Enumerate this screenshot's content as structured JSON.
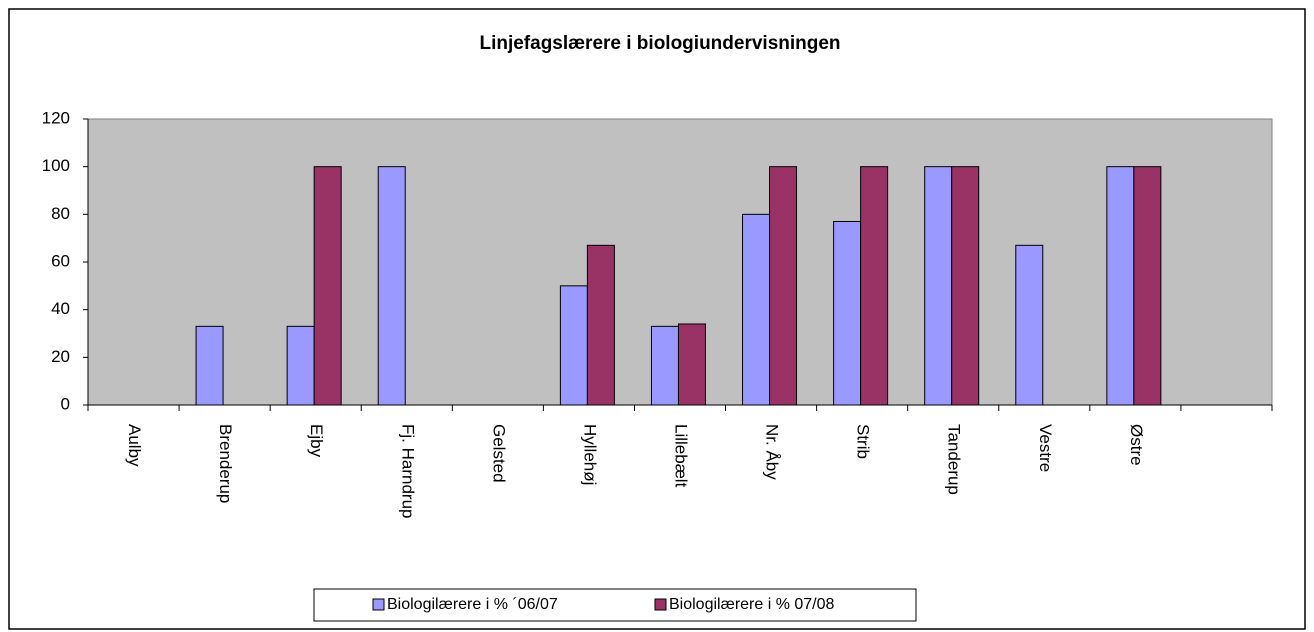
{
  "chart_data": {
    "type": "bar",
    "title": "Linjefagslærere i biologiundervisningen",
    "categories": [
      "Aulby",
      "Brenderup",
      "Ejby",
      "Fj. Harndrup",
      "Gelsted",
      "Hyllehøj",
      "Lillebælt",
      "Nr. Åby",
      "Strib",
      "Tanderup",
      "Vestre",
      "Østre",
      null
    ],
    "series": [
      {
        "name": "Biologilærere i % ´06/07",
        "color": "#9999ff",
        "values": [
          null,
          33,
          33,
          100,
          null,
          50,
          33,
          80,
          77,
          100,
          67,
          100,
          null
        ]
      },
      {
        "name": "Biologilærere i % 07/08",
        "color": "#993366",
        "values": [
          null,
          null,
          100,
          null,
          null,
          67,
          34,
          100,
          100,
          100,
          null,
          100,
          null
        ]
      }
    ],
    "ylim": [
      0,
      120
    ],
    "yticks": [
      0,
      20,
      40,
      60,
      80,
      100,
      120
    ],
    "legend": "bottom",
    "grid": false,
    "plot_background": "#c0c0c0"
  }
}
